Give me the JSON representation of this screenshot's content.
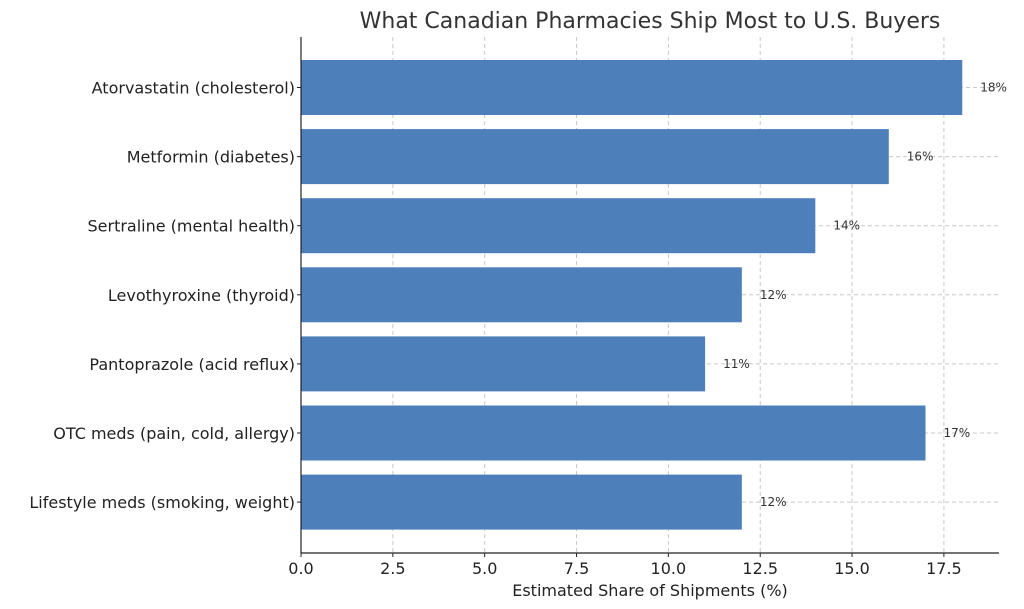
{
  "chart_data": {
    "type": "bar",
    "orientation": "horizontal",
    "title": "What Canadian Pharmacies Ship Most to U.S. Buyers",
    "xlabel": "Estimated Share of Shipments (%)",
    "ylabel": "",
    "xlim": [
      0,
      19
    ],
    "xticks": [
      0,
      2.5,
      5,
      7.5,
      10,
      12.5,
      15,
      17.5
    ],
    "xtick_labels": [
      "0.0",
      "2.5",
      "5.0",
      "7.5",
      "10.0",
      "12.5",
      "15.0",
      "17.5"
    ],
    "grid": true,
    "categories": [
      "Atorvastatin (cholesterol)",
      "Metformin (diabetes)",
      "Sertraline (mental health)",
      "Levothyroxine (thyroid)",
      "Pantoprazole (acid reflux)",
      "OTC meds (pain, cold, allergy)",
      "Lifestyle meds (smoking, weight)"
    ],
    "values": [
      18,
      16,
      14,
      12,
      11,
      17,
      12
    ],
    "data_labels": [
      "18%",
      "16%",
      "14%",
      "12%",
      "11%",
      "17%",
      "12%"
    ],
    "bar_color": "#4d7fbb"
  }
}
